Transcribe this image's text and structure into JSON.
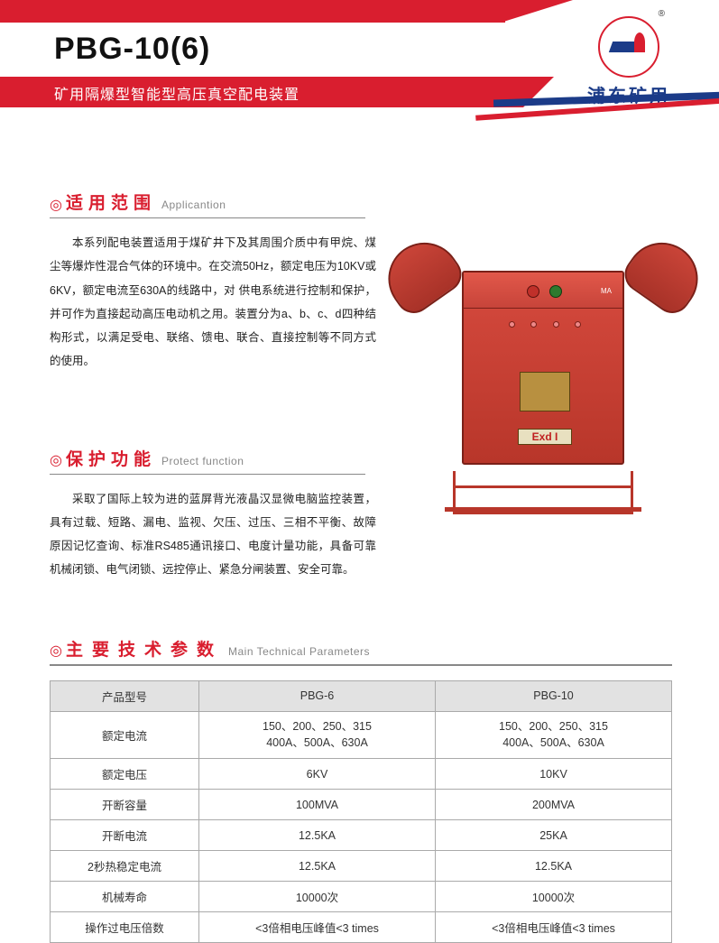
{
  "header": {
    "product_code": "PBG-10(6)",
    "subtitle": "矿用隔爆型智能型高压真空配电装置",
    "logo_tm": "®",
    "brand_cn": "浦东矿用"
  },
  "sec1": {
    "title_cn": "适用范围",
    "title_en": "Applicantion",
    "body": "本系列配电装置适用于煤矿井下及其周围介质中有甲烷、煤尘等爆炸性混合气体的环境中。在交流50Hz，额定电压为10KV或6KV，额定电流至630A的线路中，对 供电系统进行控制和保护，并可作为直接起动高压电动机之用。装置分为a、b、c、d四种结构形式，以满足受电、联络、馈电、联合、直接控制等不同方式的使用。"
  },
  "sec2": {
    "title_cn": "保护功能",
    "title_en": "Protect function",
    "body": "采取了国际上较为进的蓝屏背光液晶汉显微电脑监控装置，具有过载、短路、漏电、监视、欠压、过压、三相不平衡、故障原因记忆查询、标准RS485通讯接口、电度计量功能，具备可靠机械闭锁、电气闭锁、远控停止、紧急分闸装置、安全可靠。"
  },
  "sec3": {
    "title_cn": "主要技术参数",
    "title_en": "Main Technical Parameters"
  },
  "device": {
    "ma": "MA",
    "exd": "Exd I"
  },
  "table": {
    "th_model": "产品型号",
    "th_c1": "PBG-6",
    "th_c2": "PBG-10",
    "rows": [
      {
        "label": "额定电流",
        "c1": "150、200、250、315\n400A、500A、630A",
        "c2": "150、200、250、315\n400A、500A、630A"
      },
      {
        "label": "额定电压",
        "c1": "6KV",
        "c2": "10KV"
      },
      {
        "label": "开断容量",
        "c1": "100MVA",
        "c2": "200MVA"
      },
      {
        "label": "开断电流",
        "c1": "12.5KA",
        "c2": "25KA"
      },
      {
        "label": "2秒热稳定电流",
        "c1": "12.5KA",
        "c2": "12.5KA"
      },
      {
        "label": "机械寿命",
        "c1": "10000次",
        "c2": "10000次"
      },
      {
        "label": "操作过电压倍数",
        "c1": "<3倍相电压峰值<3 times",
        "c2": "<3倍相电压峰值<3 times"
      }
    ]
  },
  "colors": {
    "red": "#d91e2f",
    "navy": "#1b3b88",
    "th_bg": "#e2e2e2",
    "border": "#aaa",
    "device_red": "#c7443a",
    "text": "#222"
  }
}
